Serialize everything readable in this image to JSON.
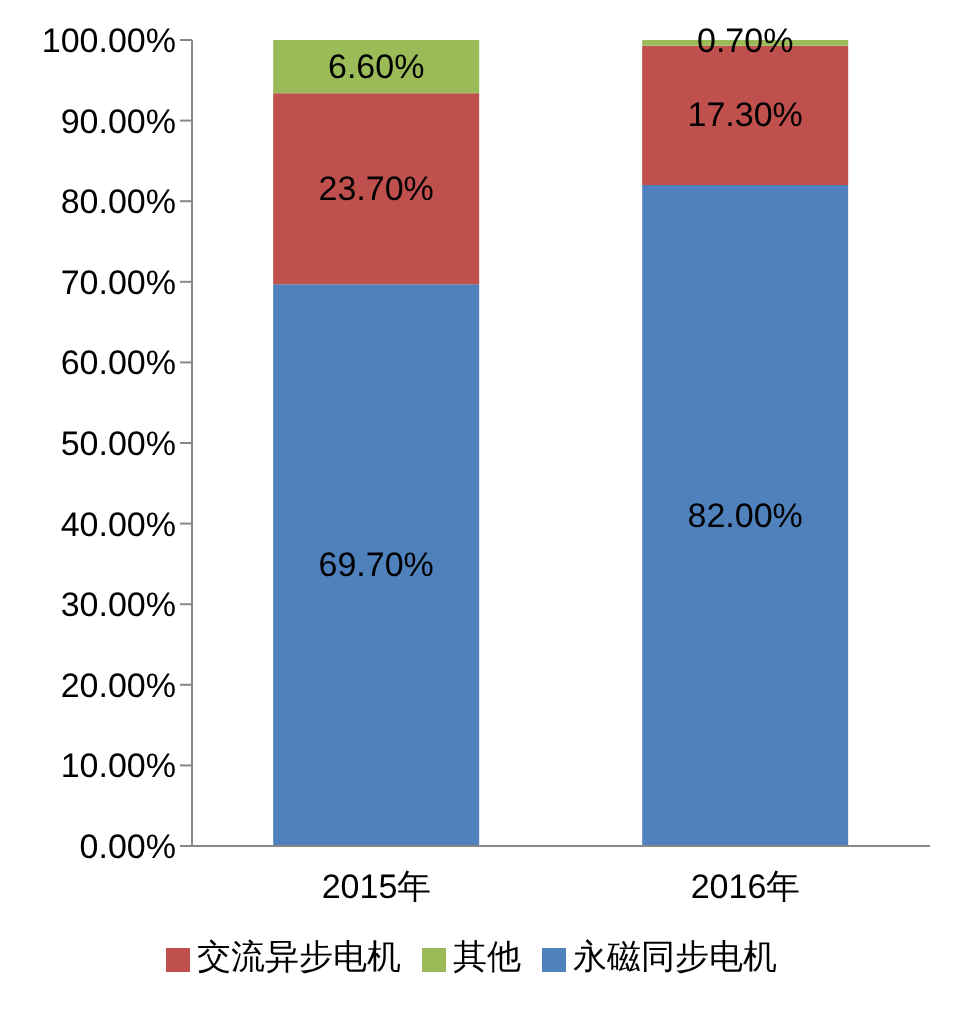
{
  "chart_data": {
    "type": "bar",
    "stacked": true,
    "categories": [
      "2015年",
      "2016年"
    ],
    "series": [
      {
        "name": "永磁同步电机",
        "color": "#4f81bd",
        "values": [
          69.7,
          82.0
        ],
        "value_labels": [
          "69.70%",
          "82.00%"
        ]
      },
      {
        "name": "交流异步电机",
        "color": "#c0504d",
        "values": [
          23.7,
          17.3
        ],
        "value_labels": [
          "23.70%",
          "17.30%"
        ]
      },
      {
        "name": "其他",
        "color": "#9bbb59",
        "values": [
          6.6,
          0.7
        ],
        "value_labels": [
          "6.60%",
          "0.70%"
        ]
      }
    ],
    "ylim": [
      0,
      100
    ],
    "yticks": [
      {
        "value": 0,
        "label": "0.00%"
      },
      {
        "value": 10,
        "label": "10.00%"
      },
      {
        "value": 20,
        "label": "20.00%"
      },
      {
        "value": 30,
        "label": "30.00%"
      },
      {
        "value": 40,
        "label": "40.00%"
      },
      {
        "value": 50,
        "label": "50.00%"
      },
      {
        "value": 60,
        "label": "60.00%"
      },
      {
        "value": 70,
        "label": "70.00%"
      },
      {
        "value": 80,
        "label": "80.00%"
      },
      {
        "value": 90,
        "label": "90.00%"
      },
      {
        "value": 100,
        "label": "100.00%"
      }
    ],
    "grid": false,
    "legend": "bottom"
  }
}
